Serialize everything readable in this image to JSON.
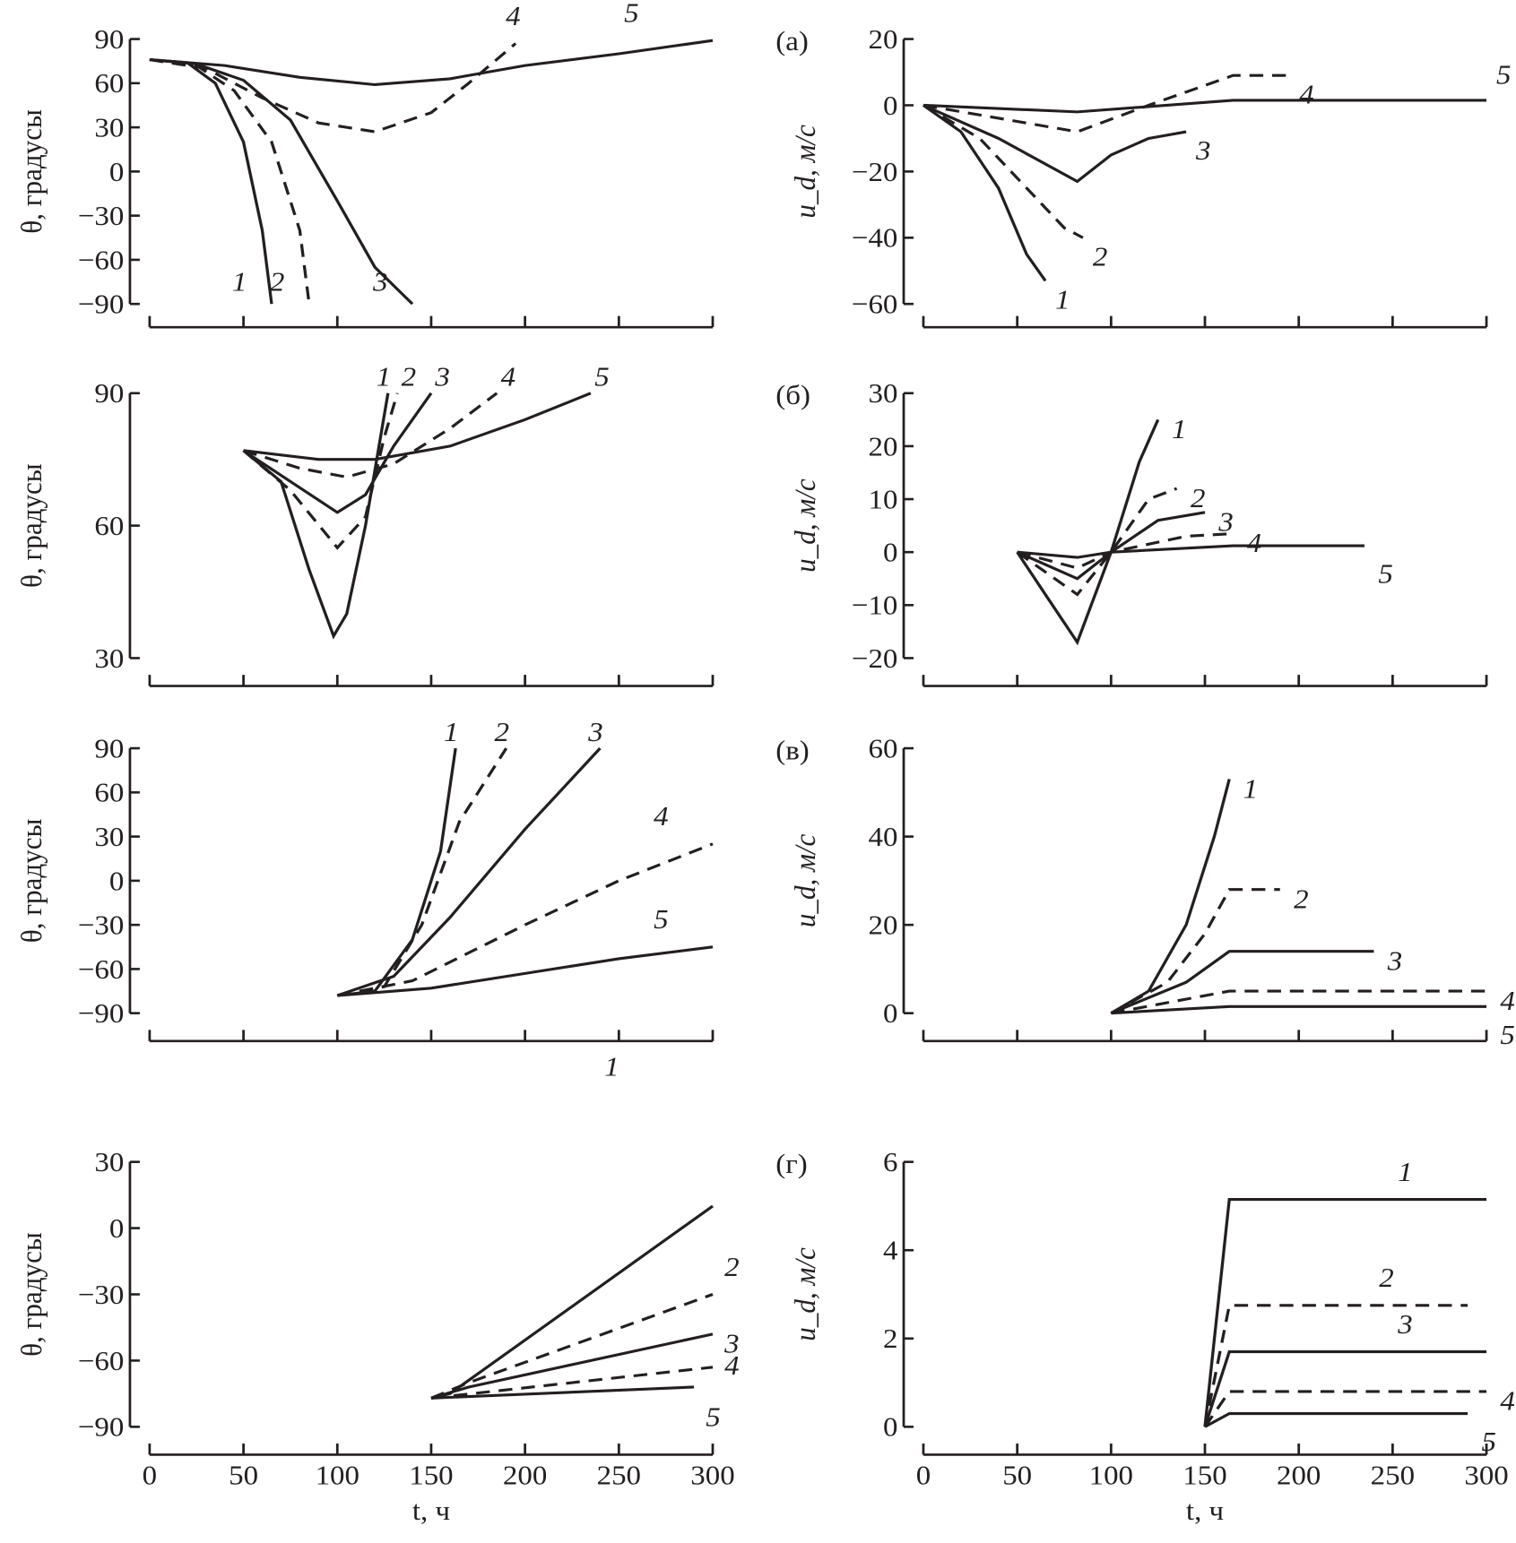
{
  "chart_data": [
    {
      "type": "line",
      "panel": "a-left",
      "xlabel": "",
      "ylabel": "θ, градусы",
      "xlim": [
        0,
        300
      ],
      "ylim": [
        -90,
        90
      ],
      "yticks": [
        -90,
        -60,
        -30,
        0,
        30,
        60,
        90
      ],
      "xticks": [
        0,
        50,
        100,
        150,
        200,
        250,
        300
      ],
      "series": [
        {
          "name": "1",
          "dashed": false,
          "x": [
            0,
            20,
            35,
            50,
            60,
            65
          ],
          "y": [
            76,
            74,
            60,
            20,
            -40,
            -90
          ]
        },
        {
          "name": "2",
          "dashed": true,
          "x": [
            0,
            25,
            45,
            65,
            80,
            85
          ],
          "y": [
            76,
            72,
            55,
            20,
            -40,
            -90
          ]
        },
        {
          "name": "3",
          "dashed": false,
          "x": [
            0,
            25,
            50,
            75,
            100,
            120,
            140
          ],
          "y": [
            76,
            73,
            62,
            35,
            -20,
            -65,
            -90
          ]
        },
        {
          "name": "4",
          "dashed": true,
          "x": [
            0,
            30,
            60,
            90,
            120,
            150,
            170,
            195
          ],
          "y": [
            76,
            70,
            50,
            33,
            27,
            40,
            60,
            87
          ]
        },
        {
          "name": "5",
          "dashed": false,
          "x": [
            0,
            40,
            80,
            120,
            160,
            200,
            250,
            300
          ],
          "y": [
            76,
            72,
            64,
            59,
            63,
            72,
            80,
            89
          ]
        }
      ]
    },
    {
      "type": "line",
      "panel": "a-right",
      "title": "(а)",
      "ylabel": "u_d, м/с",
      "xlim": [
        0,
        300
      ],
      "ylim": [
        -60,
        20
      ],
      "yticks": [
        -60,
        -40,
        -20,
        0,
        20
      ],
      "xticks": [
        0,
        50,
        100,
        150,
        200,
        250,
        300
      ],
      "series": [
        {
          "name": "1",
          "dashed": false,
          "x": [
            0,
            20,
            40,
            55,
            65
          ],
          "y": [
            0,
            -8,
            -25,
            -45,
            -53
          ]
        },
        {
          "name": "2",
          "dashed": true,
          "x": [
            0,
            30,
            55,
            75,
            85
          ],
          "y": [
            0,
            -10,
            -25,
            -37,
            -40
          ]
        },
        {
          "name": "3",
          "dashed": false,
          "x": [
            0,
            40,
            82,
            100,
            120,
            140
          ],
          "y": [
            0,
            -10,
            -23,
            -15,
            -10,
            -8
          ]
        },
        {
          "name": "4",
          "dashed": true,
          "x": [
            0,
            82,
            120,
            165,
            195
          ],
          "y": [
            0,
            -8,
            0,
            9,
            9
          ]
        },
        {
          "name": "5",
          "dashed": false,
          "x": [
            0,
            82,
            165,
            300
          ],
          "y": [
            0,
            -2,
            1.5,
            1.5
          ]
        }
      ]
    },
    {
      "type": "line",
      "panel": "b-left",
      "ylabel": "θ, градусы",
      "xlim": [
        0,
        300
      ],
      "ylim": [
        30,
        90
      ],
      "yticks": [
        30,
        60,
        90
      ],
      "xticks": [
        0,
        50,
        100,
        150,
        200,
        250,
        300
      ],
      "series": [
        {
          "name": "1",
          "dashed": false,
          "x": [
            50,
            70,
            85,
            98,
            105,
            115,
            127
          ],
          "y": [
            77,
            70,
            50,
            35,
            40,
            60,
            90
          ]
        },
        {
          "name": "2",
          "dashed": true,
          "x": [
            50,
            75,
            100,
            115,
            125,
            132
          ],
          "y": [
            77,
            68,
            55,
            62,
            80,
            90
          ]
        },
        {
          "name": "3",
          "dashed": false,
          "x": [
            50,
            75,
            100,
            115,
            130,
            150
          ],
          "y": [
            77,
            70,
            63,
            67,
            78,
            90
          ]
        },
        {
          "name": "4",
          "dashed": true,
          "x": [
            50,
            80,
            105,
            130,
            160,
            185
          ],
          "y": [
            77,
            73,
            71,
            74,
            82,
            90
          ]
        },
        {
          "name": "5",
          "dashed": false,
          "x": [
            50,
            90,
            120,
            160,
            200,
            235
          ],
          "y": [
            77,
            75,
            75,
            78,
            84,
            90
          ]
        }
      ]
    },
    {
      "type": "line",
      "panel": "b-right",
      "title": "(б)",
      "ylabel": "u_d, м/с",
      "xlim": [
        0,
        300
      ],
      "ylim": [
        -20,
        30
      ],
      "yticks": [
        -20,
        -10,
        0,
        10,
        20,
        30
      ],
      "xticks": [
        0,
        50,
        100,
        150,
        200,
        250,
        300
      ],
      "series": [
        {
          "name": "1",
          "dashed": false,
          "x": [
            50,
            65,
            82,
            100,
            115,
            125
          ],
          "y": [
            0,
            -8,
            -17,
            0,
            17,
            25
          ]
        },
        {
          "name": "2",
          "dashed": true,
          "x": [
            50,
            82,
            100,
            120,
            135
          ],
          "y": [
            0,
            -8,
            0,
            10,
            12
          ]
        },
        {
          "name": "3",
          "dashed": false,
          "x": [
            50,
            82,
            100,
            125,
            150
          ],
          "y": [
            0,
            -5,
            0,
            6,
            7.5
          ]
        },
        {
          "name": "4",
          "dashed": true,
          "x": [
            50,
            82,
            100,
            140,
            165
          ],
          "y": [
            0,
            -3,
            0,
            3,
            3.5
          ]
        },
        {
          "name": "5",
          "dashed": false,
          "x": [
            50,
            82,
            100,
            165,
            235
          ],
          "y": [
            0,
            -1,
            0,
            1.2,
            1.2
          ]
        }
      ]
    },
    {
      "type": "line",
      "panel": "c-left",
      "ylabel": "θ, градусы",
      "xlim": [
        0,
        300
      ],
      "ylim": [
        -90,
        90
      ],
      "yticks": [
        -90,
        -60,
        -30,
        0,
        30,
        60,
        90
      ],
      "xticks": [
        0,
        50,
        100,
        150,
        200,
        250,
        300
      ],
      "series": [
        {
          "name": "1",
          "dashed": false,
          "x": [
            100,
            120,
            140,
            155,
            163
          ],
          "y": [
            -78,
            -75,
            -40,
            20,
            90
          ]
        },
        {
          "name": "2",
          "dashed": true,
          "x": [
            100,
            125,
            145,
            165,
            190
          ],
          "y": [
            -78,
            -72,
            -30,
            40,
            90
          ]
        },
        {
          "name": "3",
          "dashed": false,
          "x": [
            100,
            130,
            160,
            200,
            240
          ],
          "y": [
            -78,
            -65,
            -25,
            35,
            90
          ]
        },
        {
          "name": "4",
          "dashed": true,
          "x": [
            100,
            140,
            200,
            250,
            300
          ],
          "y": [
            -78,
            -68,
            -30,
            0,
            25
          ]
        },
        {
          "name": "5",
          "dashed": false,
          "x": [
            100,
            150,
            200,
            250,
            300
          ],
          "y": [
            -78,
            -73,
            -63,
            -53,
            -45
          ]
        }
      ]
    },
    {
      "type": "line",
      "panel": "c-right",
      "title": "(в)",
      "ylabel": "u_d, м/с",
      "xlim": [
        0,
        300
      ],
      "ylim": [
        0,
        60
      ],
      "yticks": [
        0,
        20,
        40,
        60
      ],
      "xticks": [
        0,
        50,
        100,
        150,
        200,
        250,
        300
      ],
      "series": [
        {
          "name": "1",
          "dashed": false,
          "x": [
            100,
            120,
            140,
            155,
            163
          ],
          "y": [
            0,
            5,
            20,
            40,
            53
          ]
        },
        {
          "name": "2",
          "dashed": true,
          "x": [
            100,
            130,
            150,
            163,
            190
          ],
          "y": [
            0,
            7,
            18,
            28,
            28
          ]
        },
        {
          "name": "3",
          "dashed": false,
          "x": [
            100,
            140,
            163,
            240
          ],
          "y": [
            0,
            7,
            14,
            14
          ]
        },
        {
          "name": "4",
          "dashed": true,
          "x": [
            100,
            163,
            300
          ],
          "y": [
            0,
            5,
            5
          ]
        },
        {
          "name": "5",
          "dashed": false,
          "x": [
            100,
            163,
            300
          ],
          "y": [
            0,
            1.5,
            1.5
          ]
        }
      ]
    },
    {
      "type": "line",
      "panel": "d-left",
      "xlabel": "t, ч",
      "ylabel": "θ, градусы",
      "xlim": [
        0,
        300
      ],
      "ylim": [
        -90,
        30
      ],
      "yticks": [
        -90,
        -60,
        -30,
        0,
        30
      ],
      "xticks": [
        0,
        50,
        100,
        150,
        200,
        250,
        300
      ],
      "series": [
        {
          "name": "1",
          "dashed": false,
          "x": [
            150,
            160,
            300
          ],
          "y": [
            -77,
            -75,
            10
          ]
        },
        {
          "name": "2",
          "dashed": true,
          "x": [
            150,
            170,
            300
          ],
          "y": [
            -77,
            -70,
            -30
          ]
        },
        {
          "name": "3",
          "dashed": false,
          "x": [
            150,
            170,
            300
          ],
          "y": [
            -77,
            -72,
            -48
          ]
        },
        {
          "name": "4",
          "dashed": true,
          "x": [
            150,
            300
          ],
          "y": [
            -77,
            -63
          ]
        },
        {
          "name": "5",
          "dashed": false,
          "x": [
            150,
            290
          ],
          "y": [
            -77,
            -72
          ]
        }
      ]
    },
    {
      "type": "line",
      "panel": "d-right",
      "title": "(г)",
      "xlabel": "t, ч",
      "ylabel": "u_d, м/с",
      "xlim": [
        0,
        300
      ],
      "ylim": [
        0,
        6
      ],
      "yticks": [
        0,
        2,
        4,
        6
      ],
      "xticks": [
        0,
        50,
        100,
        150,
        200,
        250,
        300
      ],
      "series": [
        {
          "name": "1",
          "dashed": false,
          "x": [
            150,
            163,
            300
          ],
          "y": [
            0,
            5.15,
            5.15
          ]
        },
        {
          "name": "2",
          "dashed": true,
          "x": [
            150,
            163,
            290
          ],
          "y": [
            0,
            2.75,
            2.75
          ]
        },
        {
          "name": "3",
          "dashed": false,
          "x": [
            150,
            163,
            300
          ],
          "y": [
            0,
            1.7,
            1.7
          ]
        },
        {
          "name": "4",
          "dashed": true,
          "x": [
            150,
            163,
            300
          ],
          "y": [
            0,
            0.8,
            0.8
          ]
        },
        {
          "name": "5",
          "dashed": false,
          "x": [
            150,
            163,
            290
          ],
          "y": [
            0,
            0.3,
            0.3
          ]
        }
      ]
    }
  ]
}
